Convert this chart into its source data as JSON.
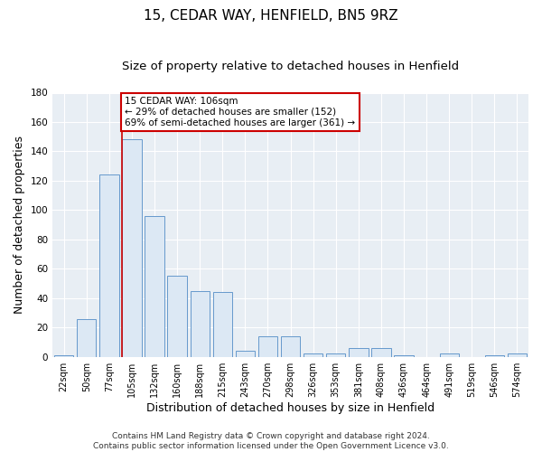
{
  "title1": "15, CEDAR WAY, HENFIELD, BN5 9RZ",
  "title2": "Size of property relative to detached houses in Henfield",
  "xlabel": "Distribution of detached houses by size in Henfield",
  "ylabel": "Number of detached properties",
  "bar_color": "#dce8f4",
  "bar_edge_color": "#6699cc",
  "categories": [
    "22sqm",
    "50sqm",
    "77sqm",
    "105sqm",
    "132sqm",
    "160sqm",
    "188sqm",
    "215sqm",
    "243sqm",
    "270sqm",
    "298sqm",
    "326sqm",
    "353sqm",
    "381sqm",
    "408sqm",
    "436sqm",
    "464sqm",
    "491sqm",
    "519sqm",
    "546sqm",
    "574sqm"
  ],
  "values": [
    1,
    26,
    124,
    148,
    96,
    55,
    45,
    44,
    4,
    14,
    14,
    2,
    2,
    6,
    6,
    1,
    0,
    2,
    0,
    1,
    2
  ],
  "red_line_index": 3,
  "annotation_line1": "15 CEDAR WAY: 106sqm",
  "annotation_line2": "← 29% of detached houses are smaller (152)",
  "annotation_line3": "69% of semi-detached houses are larger (361) →",
  "annotation_box_color": "#ffffff",
  "annotation_border_color": "#cc0000",
  "footer1": "Contains HM Land Registry data © Crown copyright and database right 2024.",
  "footer2": "Contains public sector information licensed under the Open Government Licence v3.0.",
  "ylim": [
    0,
    180
  ],
  "yticks": [
    0,
    20,
    40,
    60,
    80,
    100,
    120,
    140,
    160,
    180
  ],
  "fig_bg": "#ffffff",
  "plot_bg": "#e8eef4",
  "grid_color": "#ffffff",
  "title1_fontsize": 11,
  "title2_fontsize": 9.5,
  "tick_fontsize": 7,
  "ylabel_fontsize": 9,
  "xlabel_fontsize": 9,
  "footer_fontsize": 6.5
}
